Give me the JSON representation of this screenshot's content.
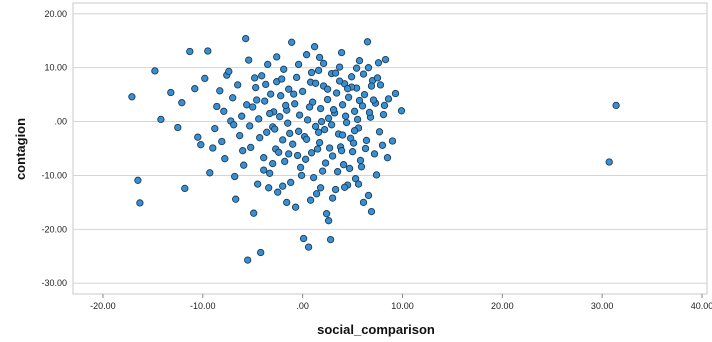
{
  "chart_data": {
    "type": "scatter",
    "title": "",
    "xlabel": "social_comparison",
    "ylabel": "contagion",
    "xlim": [
      -23,
      40.5
    ],
    "ylim": [
      -32,
      22
    ],
    "x_ticks": [
      -20,
      -10,
      0,
      10,
      20,
      30,
      40
    ],
    "y_ticks": [
      20,
      10,
      0,
      -10,
      -20,
      -30
    ],
    "x_tick_labels": [
      "-20.00",
      "-10.00",
      ".00",
      "10.00",
      "20.00",
      "30.00",
      "40.00"
    ],
    "y_tick_labels": [
      "20.00",
      "10.00",
      ".00",
      "-10.00",
      "-20.00",
      "-30.00"
    ],
    "grid": "horizontal",
    "legend": "none",
    "colors": {
      "marker_fill": "#3a8fd0",
      "marker_stroke": "#1a3d5c",
      "grid": "#d4d4d4",
      "frame": "#c8c8c8"
    },
    "points": [
      [
        -17.1,
        4.6
      ],
      [
        -16.5,
        -10.9
      ],
      [
        -16.3,
        -15.1
      ],
      [
        -14.8,
        9.4
      ],
      [
        -14.2,
        0.4
      ],
      [
        -13.2,
        5.4
      ],
      [
        -12.5,
        -1.1
      ],
      [
        -12.1,
        3.5
      ],
      [
        -11.8,
        -12.4
      ],
      [
        -11.3,
        13.0
      ],
      [
        -10.8,
        6.1
      ],
      [
        -10.5,
        -2.9
      ],
      [
        -10.2,
        -4.3
      ],
      [
        -9.8,
        8.0
      ],
      [
        -9.5,
        13.1
      ],
      [
        -9.3,
        -9.5
      ],
      [
        -9.0,
        -4.9
      ],
      [
        -8.8,
        -1.3
      ],
      [
        -8.6,
        2.8
      ],
      [
        -8.3,
        5.7
      ],
      [
        -8.1,
        -3.7
      ],
      [
        -7.8,
        -6.9
      ],
      [
        -7.6,
        8.6
      ],
      [
        -7.4,
        9.3
      ],
      [
        -7.2,
        0.1
      ],
      [
        -7.0,
        4.4
      ],
      [
        -6.8,
        -10.2
      ],
      [
        -6.7,
        -14.4
      ],
      [
        -6.5,
        6.8
      ],
      [
        -6.3,
        -2.6
      ],
      [
        -6.1,
        1.0
      ],
      [
        -5.9,
        -8.1
      ],
      [
        -5.7,
        15.4
      ],
      [
        -5.5,
        -25.7
      ],
      [
        -5.4,
        11.4
      ],
      [
        -5.2,
        -4.8
      ],
      [
        -5.0,
        2.7
      ],
      [
        -4.9,
        -17.0
      ],
      [
        -4.7,
        6.3
      ],
      [
        -4.5,
        -11.6
      ],
      [
        -4.4,
        0.5
      ],
      [
        -4.2,
        -24.3
      ],
      [
        -4.1,
        8.5
      ],
      [
        -3.9,
        -6.7
      ],
      [
        -3.8,
        3.8
      ],
      [
        -3.6,
        -2.0
      ],
      [
        -3.5,
        10.6
      ],
      [
        -3.3,
        -9.6
      ],
      [
        -3.2,
        5.1
      ],
      [
        -3.0,
        -1.0
      ],
      [
        -2.9,
        1.8
      ],
      [
        -2.7,
        -5.1
      ],
      [
        -2.6,
        7.4
      ],
      [
        -2.5,
        -13.1
      ],
      [
        -2.3,
        0.9
      ],
      [
        -2.2,
        4.8
      ],
      [
        -2.0,
        -3.4
      ],
      [
        -1.9,
        9.7
      ],
      [
        -1.8,
        -7.4
      ],
      [
        -1.6,
        2.1
      ],
      [
        -1.5,
        -0.3
      ],
      [
        -1.4,
        6.0
      ],
      [
        -1.2,
        -11.3
      ],
      [
        -1.1,
        14.7
      ],
      [
        -1.0,
        -4.2
      ],
      [
        -0.8,
        3.3
      ],
      [
        -0.7,
        -15.9
      ],
      [
        -0.6,
        8.2
      ],
      [
        -0.4,
        -1.8
      ],
      [
        -0.3,
        1.2
      ],
      [
        -0.2,
        -8.5
      ],
      [
        0.0,
        5.6
      ],
      [
        0.1,
        -21.7
      ],
      [
        0.2,
        -2.8
      ],
      [
        0.4,
        12.4
      ],
      [
        0.5,
        0.3
      ],
      [
        0.6,
        -23.3
      ],
      [
        0.8,
        7.3
      ],
      [
        0.9,
        -5.8
      ],
      [
        1.0,
        3.6
      ],
      [
        1.2,
        13.9
      ],
      [
        1.3,
        -0.9
      ],
      [
        1.4,
        -13.4
      ],
      [
        1.6,
        9.5
      ],
      [
        1.7,
        -3.9
      ],
      [
        1.8,
        2.4
      ],
      [
        2.0,
        -9.2
      ],
      [
        2.1,
        6.6
      ],
      [
        2.2,
        -1.5
      ],
      [
        2.4,
        -17.1
      ],
      [
        2.5,
        4.1
      ],
      [
        2.6,
        0.6
      ],
      [
        2.8,
        -21.9
      ],
      [
        2.9,
        8.9
      ],
      [
        3.0,
        -6.4
      ],
      [
        3.2,
        1.6
      ],
      [
        3.3,
        -12.6
      ],
      [
        3.4,
        5.3
      ],
      [
        3.6,
        -2.3
      ],
      [
        3.7,
        10.1
      ],
      [
        3.8,
        -4.7
      ],
      [
        4.0,
        3.1
      ],
      [
        4.1,
        -8.0
      ],
      [
        4.2,
        7.0
      ],
      [
        4.4,
        -0.2
      ],
      [
        4.5,
        -11.8
      ],
      [
        4.6,
        4.5
      ],
      [
        4.8,
        -3.1
      ],
      [
        4.9,
        8.3
      ],
      [
        5.0,
        -5.6
      ],
      [
        5.2,
        1.9
      ],
      [
        5.3,
        -10.6
      ],
      [
        5.4,
        6.2
      ],
      [
        5.6,
        -1.2
      ],
      [
        5.7,
        11.3
      ],
      [
        5.8,
        -7.2
      ],
      [
        6.0,
        2.9
      ],
      [
        6.1,
        -15.0
      ],
      [
        6.2,
        5.0
      ],
      [
        6.4,
        -3.5
      ],
      [
        6.5,
        14.8
      ],
      [
        6.6,
        -13.7
      ],
      [
        6.8,
        0.8
      ],
      [
        6.9,
        -16.7
      ],
      [
        7.0,
        7.6
      ],
      [
        7.2,
        -6.0
      ],
      [
        7.3,
        3.4
      ],
      [
        7.4,
        -9.9
      ],
      [
        7.6,
        10.9
      ],
      [
        7.7,
        -1.9
      ],
      [
        7.8,
        6.8
      ],
      [
        8.0,
        -4.4
      ],
      [
        8.1,
        1.3
      ],
      [
        8.3,
        11.5
      ],
      [
        8.5,
        -6.7
      ],
      [
        8.6,
        4.2
      ],
      [
        9.0,
        -3.6
      ],
      [
        9.3,
        5.2
      ],
      [
        9.9,
        2.0
      ],
      [
        -3.0,
        -7.8
      ],
      [
        -1.4,
        -6.0
      ],
      [
        0.3,
        -7.0
      ],
      [
        1.1,
        -10.4
      ],
      [
        2.3,
        -7.7
      ],
      [
        3.5,
        -9.3
      ],
      [
        4.7,
        -8.7
      ],
      [
        5.9,
        -8.4
      ],
      [
        -4.3,
        -3.0
      ],
      [
        -2.4,
        -5.7
      ],
      [
        -0.5,
        -6.3
      ],
      [
        1.5,
        -5.1
      ],
      [
        2.7,
        -4.9
      ],
      [
        3.9,
        -5.4
      ],
      [
        5.1,
        -4.0
      ],
      [
        6.3,
        -5.0
      ],
      [
        -3.3,
        1.5
      ],
      [
        -1.7,
        3.0
      ],
      [
        0.7,
        2.7
      ],
      [
        1.9,
        0.0
      ],
      [
        3.1,
        2.2
      ],
      [
        4.3,
        1.0
      ],
      [
        5.5,
        0.4
      ],
      [
        6.7,
        1.7
      ],
      [
        -2.1,
        7.9
      ],
      [
        -0.9,
        5.1
      ],
      [
        1.3,
        7.1
      ],
      [
        2.5,
        6.0
      ],
      [
        3.7,
        7.5
      ],
      [
        4.9,
        6.4
      ],
      [
        6.1,
        8.8
      ],
      [
        7.1,
        4.0
      ],
      [
        -4.6,
        4.0
      ],
      [
        -3.7,
        6.9
      ],
      [
        0.9,
        9.1
      ],
      [
        2.1,
        10.8
      ],
      [
        3.3,
        9.0
      ],
      [
        4.5,
        6.1
      ],
      [
        5.7,
        3.9
      ],
      [
        6.9,
        6.6
      ],
      [
        -5.3,
        -0.8
      ],
      [
        -2.8,
        -1.4
      ],
      [
        -1.3,
        -2.2
      ],
      [
        0.4,
        -3.3
      ],
      [
        1.6,
        -2.0
      ],
      [
        2.9,
        -0.6
      ],
      [
        4.0,
        -2.5
      ],
      [
        5.2,
        -1.7
      ],
      [
        -6.0,
        -5.4
      ],
      [
        -3.9,
        -9.0
      ],
      [
        -2.0,
        -12.0
      ],
      [
        -0.1,
        -10.0
      ],
      [
        1.8,
        -12.3
      ],
      [
        3.0,
        -14.2
      ],
      [
        4.2,
        -12.2
      ],
      [
        5.6,
        -11.6
      ],
      [
        -2.6,
        12.0
      ],
      [
        -0.4,
        10.6
      ],
      [
        1.7,
        11.9
      ],
      [
        3.9,
        12.8
      ],
      [
        5.4,
        9.9
      ],
      [
        6.6,
        10.0
      ],
      [
        7.5,
        8.1
      ],
      [
        8.2,
        3.0
      ],
      [
        -7.9,
        1.9
      ],
      [
        -6.9,
        -0.6
      ],
      [
        -5.6,
        3.1
      ],
      [
        -4.8,
        8.1
      ],
      [
        -3.4,
        -12.3
      ],
      [
        -1.6,
        -15.0
      ],
      [
        0.8,
        -14.6
      ],
      [
        2.6,
        -18.4
      ],
      [
        30.7,
        -7.5
      ],
      [
        31.4,
        3.0
      ]
    ]
  }
}
